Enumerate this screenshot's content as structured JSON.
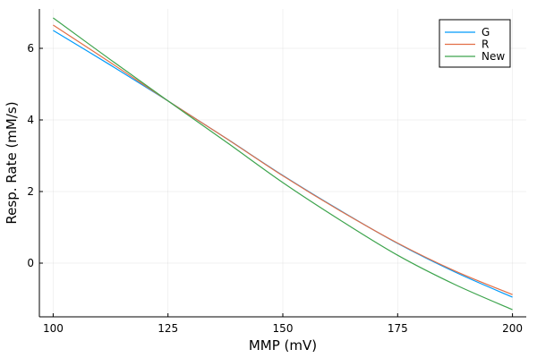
{
  "chart_data": {
    "type": "line",
    "xlabel": "MMP (mV)",
    "ylabel": "Resp. Rate (mM/s)",
    "xlim": [
      97,
      203
    ],
    "ylim": [
      -1.5,
      7.1
    ],
    "xticks": [
      100,
      125,
      150,
      175,
      200
    ],
    "yticks": [
      0,
      2,
      4,
      6
    ],
    "grid": true,
    "legend_position": "top-right",
    "series": [
      {
        "name": "G",
        "color": "#009AFA",
        "x": [
          100,
          112.5,
          125,
          137.5,
          150,
          162.5,
          175,
          187.5,
          200
        ],
        "y": [
          6.5,
          5.53,
          4.53,
          3.5,
          2.45,
          1.47,
          0.55,
          -0.25,
          -0.95
        ]
      },
      {
        "name": "R",
        "color": "#E26F46",
        "x": [
          100,
          112.5,
          125,
          137.5,
          150,
          162.5,
          175,
          187.5,
          200
        ],
        "y": [
          6.65,
          5.6,
          4.53,
          3.5,
          2.44,
          1.46,
          0.56,
          -0.22,
          -0.88
        ]
      },
      {
        "name": "New",
        "color": "#3DA44D",
        "x": [
          100,
          112.5,
          125,
          137.5,
          150,
          162.5,
          175,
          187.5,
          200
        ],
        "y": [
          6.85,
          5.68,
          4.53,
          3.4,
          2.25,
          1.2,
          0.22,
          -0.6,
          -1.3
        ]
      }
    ]
  }
}
